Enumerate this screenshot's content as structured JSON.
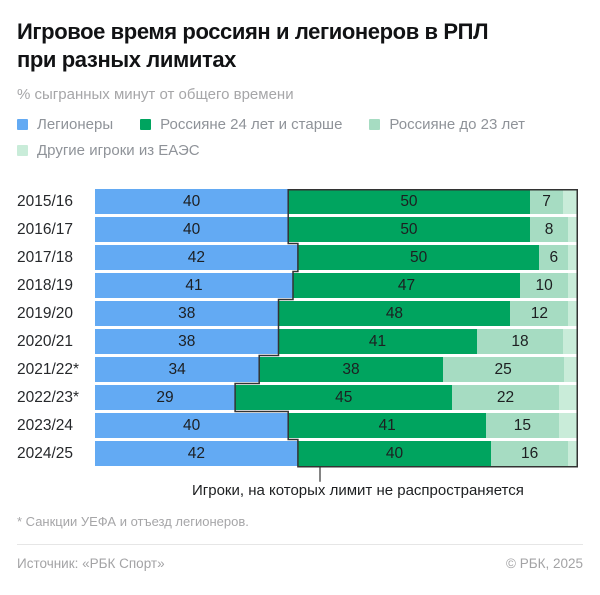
{
  "header": {
    "title_line1": "Игровое время россиян и легионеров в РПЛ",
    "title_line2": "при разных лимитах",
    "subtitle": "% сыгранных минут от общего времени"
  },
  "legend": {
    "items": [
      {
        "label": "Легионеры",
        "color": "#63aaf3",
        "row": 1
      },
      {
        "label": "Россияне 24 лет и старше",
        "color": "#00a45f",
        "row": 1
      },
      {
        "label": "Россияне до 23 лет",
        "color": "#a6dcc2",
        "row": 1
      },
      {
        "label": "Другие игроки из ЕАЭС",
        "color": "#c9ecd9",
        "row": 2
      }
    ]
  },
  "chart_data": {
    "type": "bar",
    "orientation": "horizontal",
    "stacked": true,
    "unit": "%",
    "title": "Игровое время россиян и легионеров в РПЛ при разных лимитах",
    "xlabel": "% сыгранных минут от общего времени",
    "xlim": [
      0,
      100
    ],
    "grid": false,
    "legend_position": "top",
    "categories": [
      "2015/16",
      "2016/17",
      "2017/18",
      "2018/19",
      "2019/20",
      "2020/21",
      "2021/22*",
      "2022/23*",
      "2023/24",
      "2024/25"
    ],
    "series": [
      {
        "name": "Легионеры",
        "color": "#63aaf3",
        "labeled": true,
        "values": [
          40,
          40,
          42,
          41,
          38,
          38,
          34,
          29,
          40,
          42
        ]
      },
      {
        "name": "Россияне 24 лет и старше",
        "color": "#00a45f",
        "labeled": true,
        "values": [
          50,
          50,
          50,
          47,
          48,
          41,
          38,
          45,
          41,
          40
        ]
      },
      {
        "name": "Россияне до 23 лет",
        "color": "#a6dcc2",
        "labeled": true,
        "values": [
          7,
          8,
          6,
          10,
          12,
          18,
          25,
          22,
          15,
          16
        ]
      },
      {
        "name": "Другие игроки из ЕАЭС",
        "color": "#c9ecd9",
        "labeled": false,
        "values": [
          3,
          2,
          2,
          2,
          2,
          3,
          3,
          4,
          4,
          2
        ]
      }
    ],
    "outlined_region": "Россияне 24 лет и старше + Россияне до 23 лет + Другие игроки из ЕАЭС"
  },
  "annotation": {
    "label": "Игроки, на которых лимит не распространяется"
  },
  "footnote": "* Санкции УЕФА и отъезд легионеров.",
  "footer": {
    "source": "Источник: «РБК Спорт»",
    "copyright": "© РБК, 2025"
  },
  "colors": {
    "outline": "#333333",
    "text_dark": "#1d1f21",
    "text_gray": "#a6a6a8",
    "legend_text": "#8f9399",
    "divider": "#e6e6e6"
  }
}
